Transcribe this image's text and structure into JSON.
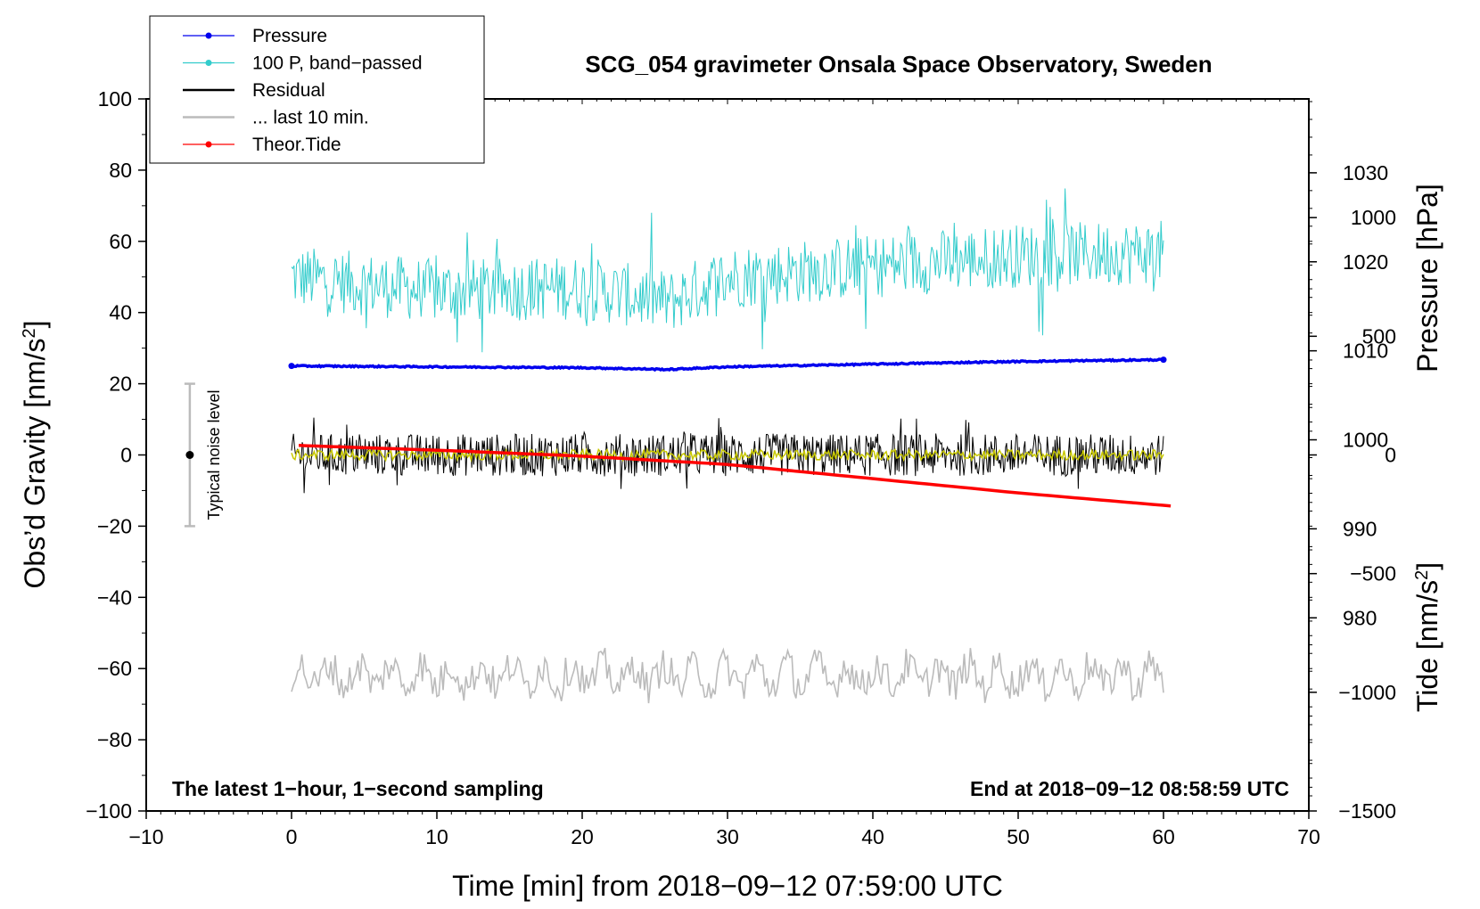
{
  "chart_data": {
    "type": "line",
    "title": "SCG_054 gravimeter Onsala Space Observatory, Sweden",
    "xlabel": "Time [min] from 2018−09−12 07:59:00 UTC",
    "ylabel_left": "Obs’d Gravity [nm/s²]",
    "ylabel_pressure": "Pressure [hPa]",
    "ylabel_tide": "Tide [nm/s²]",
    "note_left": "The latest 1−hour, 1−second sampling",
    "note_right": "End at 2018−09−12 08:58:59 UTC",
    "noise_label": "Typical noise level",
    "xlim": [
      -10,
      70
    ],
    "ylim": [
      -100,
      100
    ],
    "pressure_lim": [
      958.3,
      1038.3
    ],
    "tide_lim": [
      -1500,
      1500
    ],
    "x_ticks": [
      -10,
      0,
      10,
      20,
      30,
      40,
      50,
      60,
      70
    ],
    "y_ticks": [
      -100,
      -80,
      -60,
      -40,
      -20,
      0,
      20,
      40,
      60,
      80,
      100
    ],
    "pressure_ticks": [
      980,
      990,
      1000,
      1010,
      1020,
      1030
    ],
    "tide_ticks": [
      -1500,
      -1000,
      -500,
      0,
      500,
      1000
    ],
    "x_tick_labels": [
      "−10",
      "0",
      "10",
      "20",
      "30",
      "40",
      "50",
      "60",
      "70"
    ],
    "y_tick_labels": [
      "−100",
      "−80",
      "−60",
      "−40",
      "−20",
      "0",
      "20",
      "40",
      "60",
      "80",
      "100"
    ],
    "pressure_tick_labels": [
      "980",
      "990",
      "1000",
      "1010",
      "1020",
      "1030"
    ],
    "tide_tick_labels": [
      "−1500",
      "−1000",
      "−500",
      "0",
      "500",
      "1000"
    ],
    "noise_bar": {
      "x": -7,
      "y_center": 0,
      "y_low": -20,
      "y_high": 20
    },
    "legend": [
      {
        "label": "Pressure",
        "color": "#0000ee",
        "marker": true
      },
      {
        "label": "100 P, band−passed",
        "color": "#33cccc",
        "marker": true
      },
      {
        "label": "Residual",
        "color": "#000000",
        "marker": false
      },
      {
        "label": "... last 10 min.",
        "color": "#bbbbbb",
        "marker": false
      },
      {
        "label": "Theor.Tide",
        "color": "#ff0000",
        "marker": true
      }
    ],
    "series": [
      {
        "name": "Pressure",
        "axis": "pressure",
        "color": "#0000ee",
        "x": [
          0,
          10,
          20,
          26,
          30,
          40,
          50,
          60
        ],
        "values": [
          1008.3,
          1008.2,
          1008.1,
          1007.9,
          1008.2,
          1008.5,
          1008.8,
          1009.0
        ]
      },
      {
        "name": "100 P, band−passed",
        "axis": "left",
        "color": "#33cccc",
        "x_range": [
          0,
          60
        ],
        "mean_x": [
          0,
          10,
          20,
          26,
          30,
          40,
          50,
          60
        ],
        "mean_values": [
          50,
          46,
          47,
          43,
          50,
          53,
          56,
          57
        ],
        "amplitude": 9
      },
      {
        "name": "Residual",
        "axis": "left",
        "color": "#000000",
        "x_range": [
          0,
          60
        ],
        "mean": 0,
        "amplitude": 6
      },
      {
        "name": "Residual smoothed",
        "axis": "left",
        "color": "#c8c800",
        "x_range": [
          0,
          60
        ],
        "mean": 0,
        "amplitude": 1.5
      },
      {
        "name": "... last 10 min.",
        "axis": "left",
        "color": "#bbbbbb",
        "x_range": [
          0,
          60
        ],
        "mean": -62,
        "amplitude": 5
      },
      {
        "name": "Theor.Tide",
        "axis": "tide",
        "color": "#ff0000",
        "x": [
          0.5,
          10,
          20,
          30,
          40,
          50,
          60.5
        ],
        "values": [
          40,
          20,
          -5,
          -40,
          -100,
          -160,
          -215
        ]
      }
    ]
  }
}
